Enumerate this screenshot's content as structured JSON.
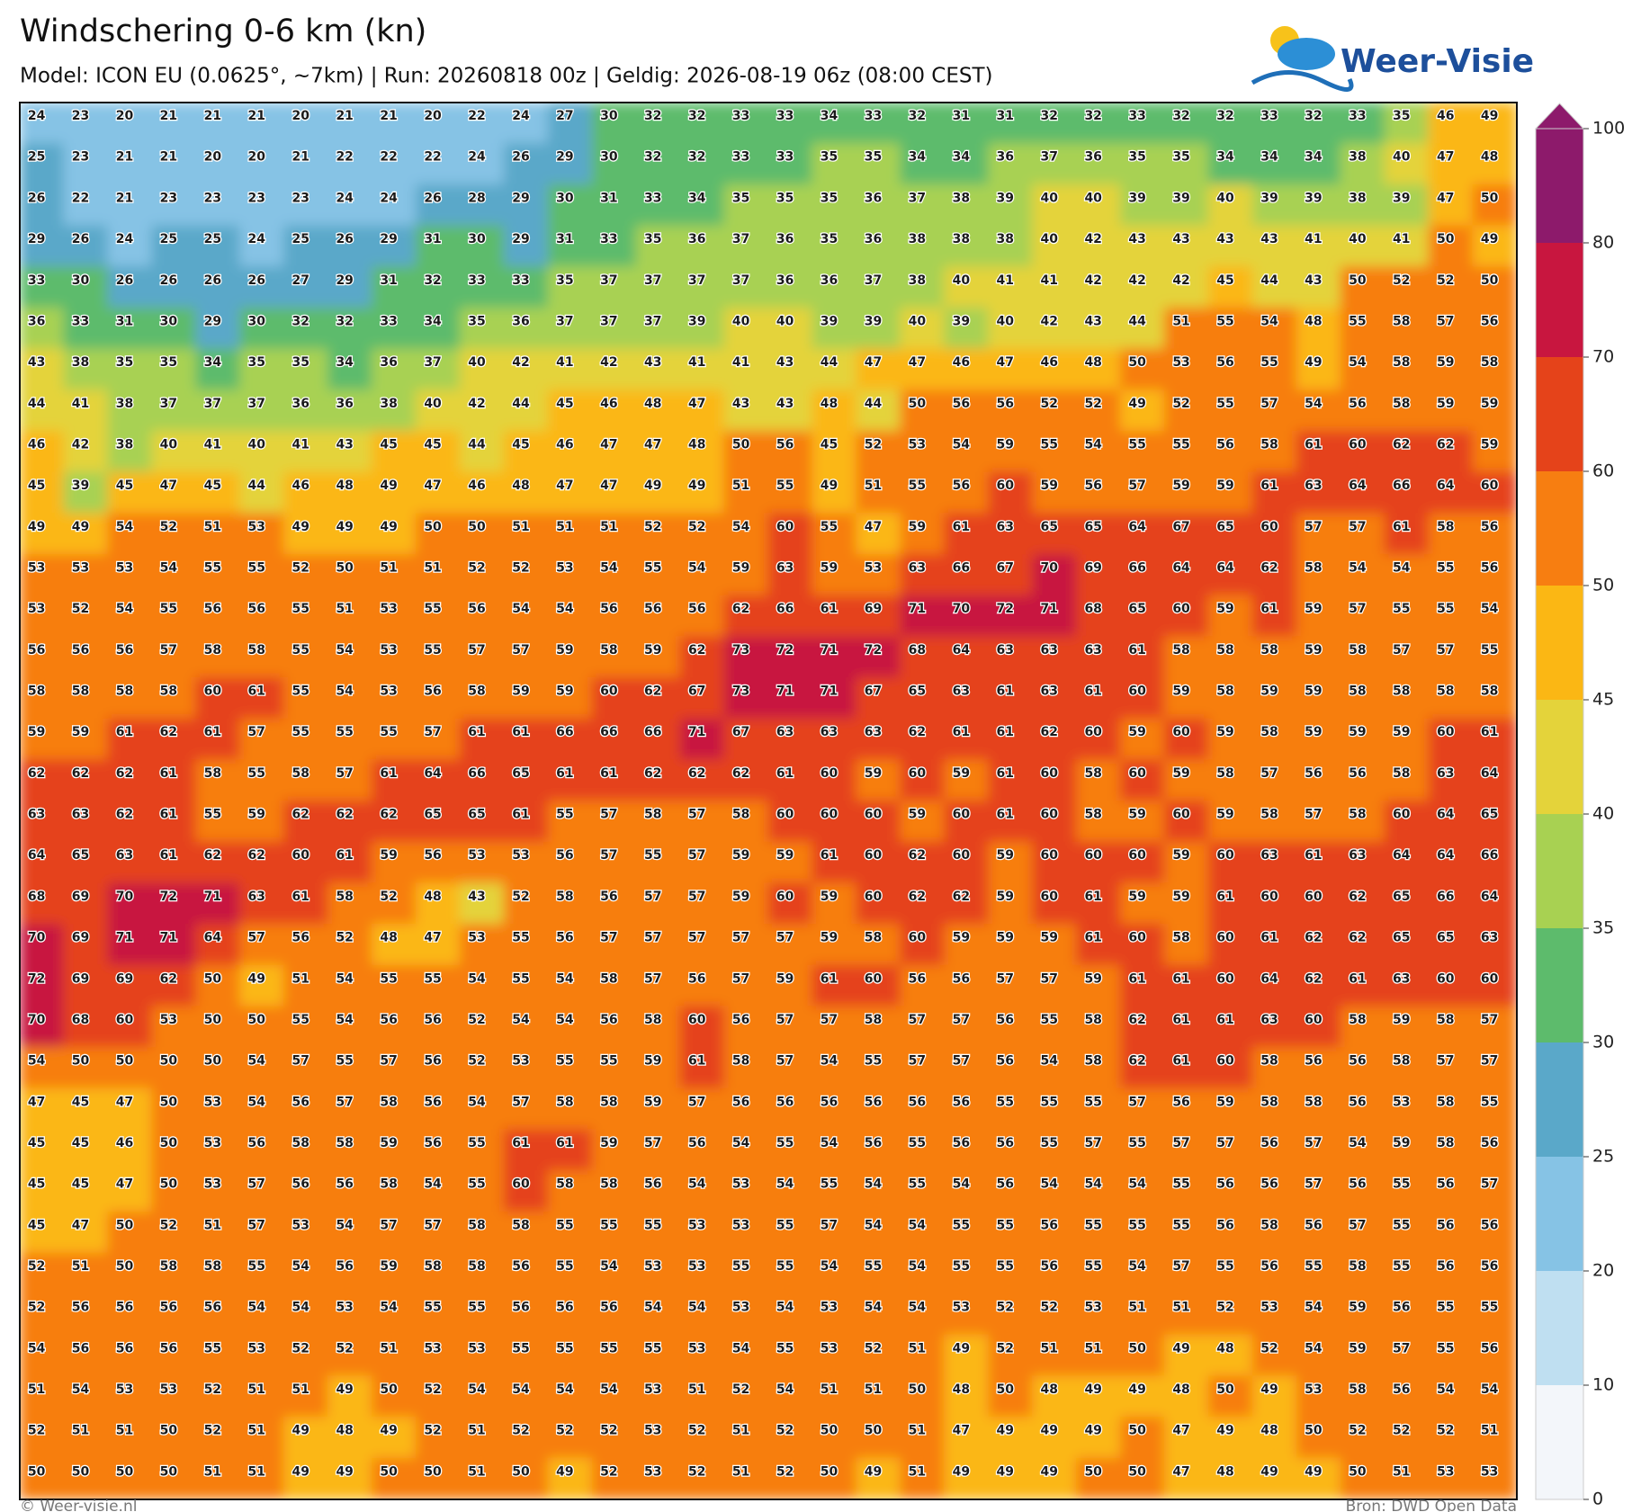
{
  "header": {
    "title": "Windschering 0-6 km (kn)",
    "subtitle": "Model: ICON EU (0.0625°, ~7km)  |  Run: 20260818 00z  |  Geldig: 2026-08-19 06z (08:00 CEST)"
  },
  "logo": "Weer-Visie",
  "grid": {
    "values": [
      [
        24,
        23,
        20,
        21,
        21,
        21,
        20,
        21,
        21,
        20,
        22,
        24,
        27,
        30,
        32,
        32,
        33,
        33,
        34,
        33,
        32,
        31,
        31,
        32,
        32,
        33,
        32,
        32,
        33,
        32,
        33,
        35,
        46,
        49
      ],
      [
        25,
        23,
        21,
        21,
        20,
        20,
        21,
        22,
        22,
        22,
        24,
        26,
        29,
        30,
        32,
        32,
        33,
        33,
        35,
        35,
        34,
        34,
        36,
        37,
        36,
        35,
        35,
        34,
        34,
        34,
        38,
        40,
        47,
        48
      ],
      [
        26,
        22,
        21,
        23,
        23,
        23,
        23,
        24,
        24,
        26,
        28,
        29,
        30,
        31,
        33,
        34,
        35,
        35,
        35,
        36,
        37,
        38,
        39,
        40,
        40,
        39,
        39,
        40,
        39,
        39,
        38,
        39,
        47,
        50
      ],
      [
        29,
        26,
        24,
        25,
        25,
        24,
        25,
        26,
        29,
        31,
        30,
        29,
        31,
        33,
        35,
        36,
        37,
        36,
        35,
        36,
        38,
        38,
        38,
        40,
        42,
        43,
        43,
        43,
        43,
        41,
        40,
        41,
        50,
        49
      ],
      [
        33,
        30,
        26,
        26,
        26,
        26,
        27,
        29,
        31,
        32,
        33,
        33,
        35,
        37,
        37,
        37,
        37,
        36,
        36,
        37,
        38,
        40,
        41,
        41,
        42,
        42,
        42,
        45,
        44,
        43,
        50,
        52,
        52,
        50
      ],
      [
        36,
        33,
        31,
        30,
        29,
        30,
        32,
        32,
        33,
        34,
        35,
        36,
        37,
        37,
        37,
        39,
        40,
        40,
        39,
        39,
        40,
        39,
        40,
        42,
        43,
        44,
        51,
        55,
        54,
        48,
        55,
        58,
        57,
        56
      ],
      [
        43,
        38,
        35,
        35,
        34,
        35,
        35,
        34,
        36,
        37,
        40,
        42,
        41,
        42,
        43,
        41,
        41,
        43,
        44,
        47,
        47,
        46,
        47,
        46,
        48,
        50,
        53,
        56,
        55,
        49,
        54,
        58,
        59,
        58
      ],
      [
        44,
        41,
        38,
        37,
        37,
        37,
        36,
        36,
        38,
        40,
        42,
        44,
        45,
        46,
        48,
        47,
        43,
        43,
        48,
        44,
        50,
        56,
        56,
        52,
        52,
        49,
        52,
        55,
        57,
        54,
        56,
        58,
        59,
        59
      ],
      [
        46,
        42,
        38,
        40,
        41,
        40,
        41,
        43,
        45,
        45,
        44,
        45,
        46,
        47,
        47,
        48,
        50,
        56,
        45,
        52,
        53,
        54,
        59,
        55,
        54,
        55,
        55,
        56,
        58,
        61,
        60,
        62,
        62,
        59
      ],
      [
        45,
        39,
        45,
        47,
        45,
        44,
        46,
        48,
        49,
        47,
        46,
        48,
        47,
        47,
        49,
        49,
        51,
        55,
        49,
        51,
        55,
        56,
        60,
        59,
        56,
        57,
        59,
        59,
        61,
        63,
        64,
        66,
        64,
        60
      ],
      [
        49,
        49,
        54,
        52,
        51,
        53,
        49,
        49,
        49,
        50,
        50,
        51,
        51,
        51,
        52,
        52,
        54,
        60,
        55,
        47,
        59,
        61,
        63,
        65,
        65,
        64,
        67,
        65,
        60,
        57,
        57,
        61,
        58,
        56
      ],
      [
        53,
        53,
        53,
        54,
        55,
        55,
        52,
        50,
        51,
        51,
        52,
        52,
        53,
        54,
        55,
        54,
        59,
        63,
        59,
        53,
        63,
        66,
        67,
        70,
        69,
        66,
        64,
        64,
        62,
        58,
        54,
        54,
        55,
        56
      ],
      [
        53,
        52,
        54,
        55,
        56,
        56,
        55,
        51,
        53,
        55,
        56,
        54,
        54,
        56,
        56,
        56,
        62,
        66,
        61,
        69,
        71,
        70,
        72,
        71,
        68,
        65,
        60,
        59,
        61,
        59,
        57,
        55,
        55,
        54
      ],
      [
        56,
        56,
        56,
        57,
        58,
        58,
        55,
        54,
        53,
        55,
        57,
        57,
        59,
        58,
        59,
        62,
        73,
        72,
        71,
        72,
        68,
        64,
        63,
        63,
        63,
        61,
        58,
        58,
        58,
        59,
        58,
        57,
        57,
        55
      ],
      [
        58,
        58,
        58,
        58,
        60,
        61,
        55,
        54,
        53,
        56,
        58,
        59,
        59,
        60,
        62,
        67,
        73,
        71,
        71,
        67,
        65,
        63,
        61,
        63,
        61,
        60,
        59,
        58,
        59,
        59,
        58,
        58,
        58,
        58
      ],
      [
        59,
        59,
        61,
        62,
        61,
        57,
        55,
        55,
        55,
        57,
        61,
        61,
        66,
        66,
        66,
        71,
        67,
        63,
        63,
        63,
        62,
        61,
        61,
        62,
        60,
        59,
        60,
        59,
        58,
        59,
        59,
        59,
        60,
        61
      ],
      [
        62,
        62,
        62,
        61,
        58,
        55,
        58,
        57,
        61,
        64,
        66,
        65,
        61,
        61,
        62,
        62,
        62,
        61,
        60,
        59,
        60,
        59,
        61,
        60,
        58,
        60,
        59,
        58,
        57,
        56,
        56,
        58,
        63,
        64
      ],
      [
        63,
        63,
        62,
        61,
        55,
        59,
        62,
        62,
        62,
        65,
        65,
        61,
        55,
        57,
        58,
        57,
        58,
        60,
        60,
        60,
        59,
        60,
        61,
        60,
        58,
        59,
        60,
        59,
        58,
        57,
        58,
        60,
        64,
        65
      ],
      [
        64,
        65,
        63,
        61,
        62,
        62,
        60,
        61,
        59,
        56,
        53,
        53,
        56,
        57,
        55,
        57,
        59,
        59,
        61,
        60,
        62,
        60,
        59,
        60,
        60,
        60,
        59,
        60,
        63,
        61,
        63,
        64,
        64,
        66
      ],
      [
        68,
        69,
        70,
        72,
        71,
        63,
        61,
        58,
        52,
        48,
        43,
        52,
        58,
        56,
        57,
        57,
        59,
        60,
        59,
        60,
        62,
        62,
        59,
        60,
        61,
        59,
        59,
        61,
        60,
        60,
        62,
        65,
        66,
        64
      ],
      [
        70,
        69,
        71,
        71,
        64,
        57,
        56,
        52,
        48,
        47,
        53,
        55,
        56,
        57,
        57,
        57,
        57,
        57,
        59,
        58,
        60,
        59,
        59,
        59,
        61,
        60,
        58,
        60,
        61,
        62,
        62,
        65,
        65,
        63
      ],
      [
        72,
        69,
        69,
        62,
        50,
        49,
        51,
        54,
        55,
        55,
        54,
        55,
        54,
        58,
        57,
        56,
        57,
        59,
        61,
        60,
        56,
        56,
        57,
        57,
        59,
        61,
        61,
        60,
        64,
        62,
        61,
        63,
        60,
        60
      ],
      [
        70,
        68,
        60,
        53,
        50,
        50,
        55,
        54,
        56,
        56,
        52,
        54,
        54,
        56,
        58,
        60,
        56,
        57,
        57,
        58,
        57,
        57,
        56,
        55,
        58,
        62,
        61,
        61,
        63,
        60,
        58,
        59,
        58,
        57
      ],
      [
        54,
        50,
        50,
        50,
        50,
        54,
        57,
        55,
        57,
        56,
        52,
        53,
        55,
        55,
        59,
        61,
        58,
        57,
        54,
        55,
        57,
        57,
        56,
        54,
        58,
        62,
        61,
        60,
        58,
        56,
        56,
        58,
        57,
        57
      ],
      [
        47,
        45,
        47,
        50,
        53,
        54,
        56,
        57,
        58,
        56,
        54,
        57,
        58,
        58,
        59,
        57,
        56,
        56,
        56,
        56,
        56,
        56,
        55,
        55,
        55,
        57,
        56,
        59,
        58,
        58,
        56,
        53,
        58,
        55
      ],
      [
        45,
        45,
        46,
        50,
        53,
        56,
        58,
        58,
        59,
        56,
        55,
        61,
        61,
        59,
        57,
        56,
        54,
        55,
        54,
        56,
        55,
        56,
        56,
        55,
        57,
        55,
        57,
        57,
        56,
        57,
        54,
        59,
        58,
        56
      ],
      [
        45,
        45,
        47,
        50,
        53,
        57,
        56,
        56,
        58,
        54,
        55,
        60,
        58,
        58,
        56,
        54,
        53,
        54,
        55,
        54,
        55,
        54,
        56,
        54,
        54,
        54,
        55,
        56,
        56,
        57,
        56,
        55,
        56,
        57
      ],
      [
        45,
        47,
        50,
        52,
        51,
        57,
        53,
        54,
        57,
        57,
        58,
        58,
        55,
        55,
        55,
        53,
        53,
        55,
        57,
        54,
        54,
        55,
        55,
        56,
        55,
        55,
        55,
        56,
        58,
        56,
        57,
        55,
        56,
        56
      ],
      [
        52,
        51,
        50,
        58,
        58,
        55,
        54,
        56,
        59,
        58,
        58,
        56,
        55,
        54,
        53,
        53,
        55,
        55,
        54,
        55,
        54,
        55,
        55,
        56,
        55,
        54,
        57,
        55,
        56,
        55,
        58,
        55,
        56,
        56
      ],
      [
        52,
        56,
        56,
        56,
        56,
        54,
        54,
        53,
        54,
        55,
        55,
        56,
        56,
        56,
        54,
        54,
        53,
        54,
        53,
        54,
        54,
        53,
        52,
        52,
        53,
        51,
        51,
        52,
        53,
        54,
        59,
        56,
        55,
        55
      ],
      [
        54,
        56,
        56,
        56,
        55,
        53,
        52,
        52,
        51,
        53,
        53,
        55,
        55,
        55,
        55,
        53,
        54,
        55,
        53,
        52,
        51,
        49,
        52,
        51,
        51,
        50,
        49,
        48,
        52,
        54,
        59,
        57,
        55,
        56
      ],
      [
        51,
        54,
        53,
        53,
        52,
        51,
        51,
        49,
        50,
        52,
        54,
        54,
        54,
        54,
        53,
        51,
        52,
        54,
        51,
        51,
        50,
        48,
        50,
        48,
        49,
        49,
        48,
        50,
        49,
        53,
        58,
        56,
        54,
        54
      ],
      [
        52,
        51,
        51,
        50,
        52,
        51,
        49,
        48,
        49,
        52,
        51,
        52,
        52,
        52,
        53,
        52,
        51,
        52,
        50,
        50,
        51,
        47,
        49,
        49,
        49,
        50,
        47,
        49,
        48,
        50,
        52,
        52,
        52,
        51
      ],
      [
        50,
        50,
        50,
        50,
        51,
        51,
        49,
        49,
        50,
        50,
        51,
        50,
        49,
        52,
        53,
        52,
        51,
        52,
        50,
        49,
        51,
        49,
        49,
        49,
        50,
        50,
        47,
        48,
        49,
        49,
        50,
        51,
        53,
        53
      ]
    ]
  },
  "colorbar": {
    "levels": [
      0,
      10,
      20,
      25,
      30,
      35,
      40,
      45,
      50,
      60,
      70,
      80,
      100
    ],
    "colors": [
      "#f3f6fa",
      "#bfdff1",
      "#86c3e5",
      "#5aa8c9",
      "#5dbb6c",
      "#a8d152",
      "#e4d33a",
      "#fbb714",
      "#f77e11",
      "#e5431a",
      "#c8163f",
      "#8d1a6b"
    ]
  },
  "footer": {
    "left": "© Weer-visie.nl",
    "right": "Bron: DWD Open Data"
  }
}
